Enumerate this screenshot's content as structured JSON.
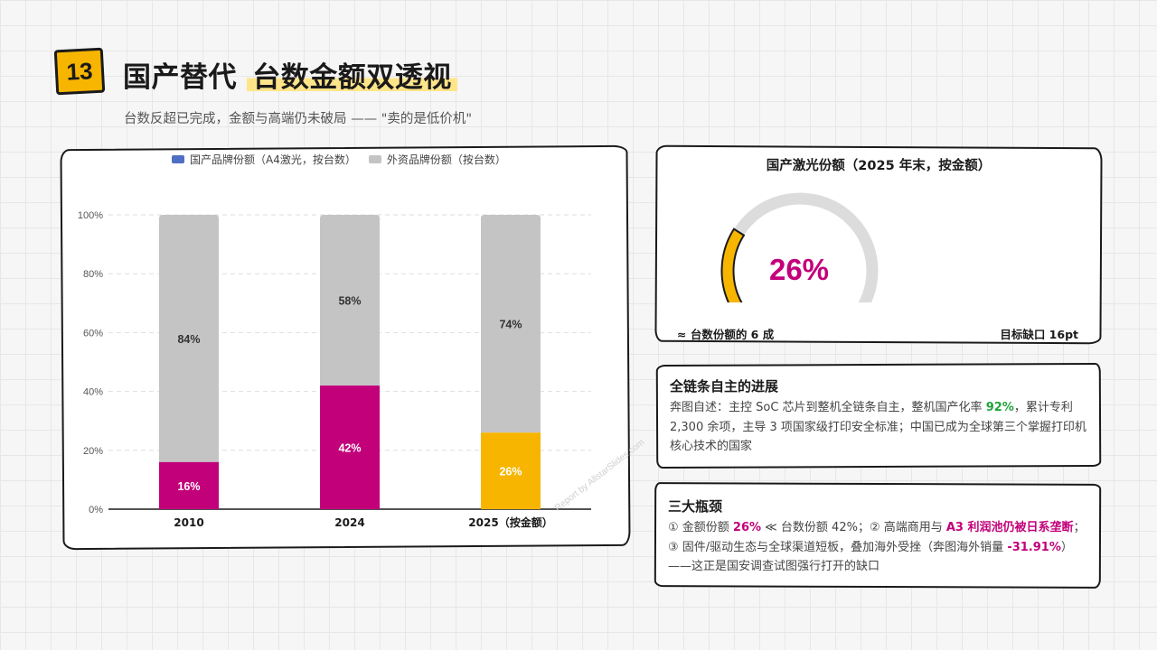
{
  "header": {
    "number": "13",
    "title_plain": "国产替代",
    "title_highlight": "台数金额双透视",
    "subtitle": "台数反超已完成，金额与高端仍未破局 —— \"卖的是低价机\""
  },
  "chart": {
    "legend": [
      {
        "label": "国产品牌份额（A4激光，按台数）",
        "color": "#4f6ec4"
      },
      {
        "label": "外资品牌份额（按台数）",
        "color": "#c4c4c4"
      }
    ],
    "watermark": "Report by AllstarSlides.com"
  },
  "chart_data": {
    "type": "bar",
    "stacked": true,
    "categories": [
      "2010",
      "2024",
      "2025（按金额）"
    ],
    "series": [
      {
        "name": "国产品牌份额（A4激光，按台数）",
        "values": [
          16,
          42,
          26
        ],
        "colors": [
          "#c2007a",
          "#c2007a",
          "#f7b500"
        ],
        "labels": [
          "16%",
          "42%",
          "26%"
        ]
      },
      {
        "name": "外资品牌份额（按台数）",
        "values": [
          84,
          58,
          74
        ],
        "color": "#c4c4c4",
        "labels": [
          "84%",
          "58%",
          "74%"
        ]
      }
    ],
    "yticks": [
      "0%",
      "20%",
      "40%",
      "60%",
      "80%",
      "100%"
    ],
    "ylim": [
      0,
      100
    ],
    "grid": true,
    "legend_position": "top"
  },
  "gauge": {
    "title": "国产激光份额（2025 年末，按金额）",
    "value_text": "26%",
    "value": 26,
    "fill_color": "#f7b500",
    "track_color": "#dcdcdc",
    "left_note": "≈ 台数份额的 6 成",
    "right_note": "目标缺口 16pt"
  },
  "progress_card": {
    "title": "全链条自主的进展",
    "text_a": "奔图自述：主控 SoC 芯片到整机全链条自主，整机国产化率 ",
    "highlight": "92%",
    "text_b": "，累计专利 2,300 余项，主导 3 项国家级打印安全标准；中国已成为全球第三个掌握打印机核心技术的国家"
  },
  "bottleneck_card": {
    "title": "三大瓶颈",
    "t1": "① 金额份额 ",
    "h1": "26%",
    "t2": " ≪ 台数份额 42%；② 高端商用与 ",
    "h2": "A3 利润池仍被日系垄断",
    "t3": "；③ 固件/驱动生态与全球渠道短板，叠加海外受挫（奔图海外销量 ",
    "h3": "-31.91%",
    "t4": "）——这正是国安调查试图强行打开的缺口"
  }
}
